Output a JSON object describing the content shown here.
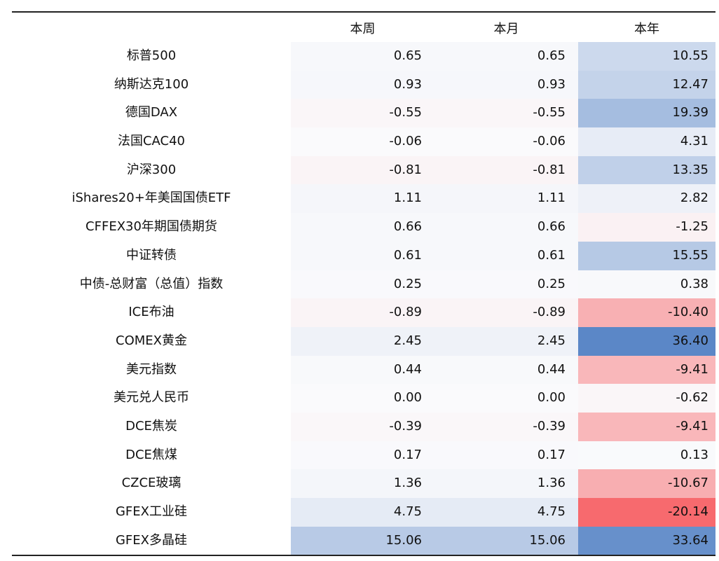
{
  "chart_data": {
    "type": "table",
    "columns": [
      "本周",
      "本月",
      "本年"
    ],
    "rows": [
      {
        "label": "标普500",
        "values": [
          0.65,
          0.65,
          10.55
        ]
      },
      {
        "label": "纳斯达克100",
        "values": [
          0.93,
          0.93,
          12.47
        ]
      },
      {
        "label": "德国DAX",
        "values": [
          -0.55,
          -0.55,
          19.39
        ]
      },
      {
        "label": "法国CAC40",
        "values": [
          -0.06,
          -0.06,
          4.31
        ]
      },
      {
        "label": "沪深300",
        "values": [
          -0.81,
          -0.81,
          13.35
        ]
      },
      {
        "label": "iShares20+年美国国债ETF",
        "values": [
          1.11,
          1.11,
          2.82
        ]
      },
      {
        "label": "CFFEX30年期国债期货",
        "values": [
          0.66,
          0.66,
          -1.25
        ]
      },
      {
        "label": "中证转债",
        "values": [
          0.61,
          0.61,
          15.55
        ]
      },
      {
        "label": "中债-总财富（总值）指数",
        "values": [
          0.25,
          0.25,
          0.38
        ]
      },
      {
        "label": "ICE布油",
        "values": [
          -0.89,
          -0.89,
          -10.4
        ]
      },
      {
        "label": "COMEX黄金",
        "values": [
          2.45,
          2.45,
          36.4
        ]
      },
      {
        "label": "美元指数",
        "values": [
          0.44,
          0.44,
          -9.41
        ]
      },
      {
        "label": "美元兑人民币",
        "values": [
          0.0,
          0.0,
          -0.62
        ]
      },
      {
        "label": "DCE焦炭",
        "values": [
          -0.39,
          -0.39,
          -9.41
        ]
      },
      {
        "label": "DCE焦煤",
        "values": [
          0.17,
          0.17,
          0.13
        ]
      },
      {
        "label": "CZCE玻璃",
        "values": [
          1.36,
          1.36,
          -10.67
        ]
      },
      {
        "label": "GFEX工业硅",
        "values": [
          4.75,
          4.75,
          -20.14
        ]
      },
      {
        "label": "GFEX多晶硅",
        "values": [
          15.06,
          15.06,
          33.64
        ]
      }
    ],
    "colors": {
      "positive": "#5b87c7",
      "negative": "#f76a6e",
      "neutral": "#fafafc"
    },
    "value_scale": {
      "max_positive": 36.4,
      "max_negative": 20.14
    }
  }
}
